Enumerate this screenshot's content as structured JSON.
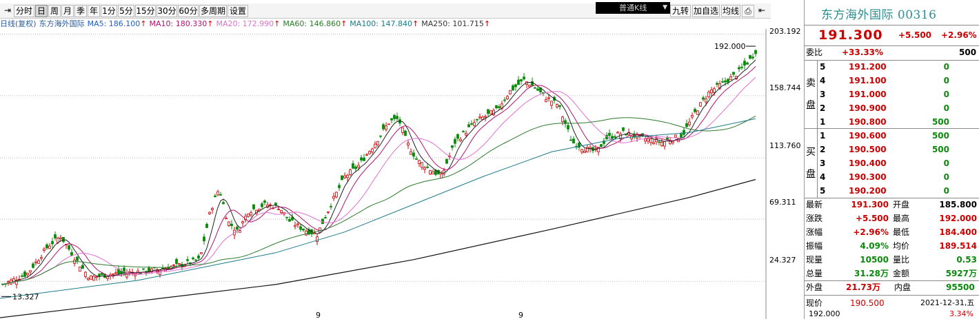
{
  "toolbar": {
    "nav_icon": "arrow-in-icon",
    "periods": [
      "分时",
      "日",
      "周",
      "月",
      "季",
      "年",
      "1分",
      "5分",
      "15分",
      "30分",
      "60分",
      "多周期",
      "设置"
    ],
    "active_period": "日",
    "kline_type": "普通K线",
    "right_buttons": [
      "九转",
      "加自选",
      "均线"
    ],
    "right_icons": [
      "print-icon",
      "arrow-in-icon"
    ]
  },
  "ma_legend": {
    "prefix": "日线(复权)",
    "stock": "东方海外国际",
    "items": [
      {
        "label": "MA5: 186.100",
        "color": "#1f5fbf"
      },
      {
        "label": "MA10: 180.330",
        "color": "#b0136e"
      },
      {
        "label": "MA20: 172.990",
        "color": "#e070d0"
      },
      {
        "label": "MA60: 146.860",
        "color": "#2a7a2a"
      },
      {
        "label": "MA100: 147.840",
        "color": "#1a7a8a"
      },
      {
        "label": "MA250: 101.715",
        "color": "#333333"
      }
    ],
    "arrow": "↑"
  },
  "chart": {
    "axis_labels": [
      "203.192",
      "158.744",
      "113.760",
      "69.311",
      "24.327"
    ],
    "high_mark": "192.000",
    "low_mark": "13.327",
    "month_marks": [
      "9",
      "9"
    ],
    "bottom_price": "192.000"
  },
  "chart_data": {
    "type": "candlestick",
    "title": "",
    "ylim": [
      0,
      210
    ],
    "y_ticks": [
      203.192,
      158.744,
      113.76,
      69.311,
      24.327
    ],
    "annotations": [
      {
        "text": "192.000",
        "value": 192.0
      },
      {
        "text": "13.327",
        "value": 13.327
      }
    ],
    "series": [
      {
        "name": "MA5",
        "end_value": 186.1
      },
      {
        "name": "MA10",
        "end_value": 180.33
      },
      {
        "name": "MA20",
        "end_value": 172.99
      },
      {
        "name": "MA60",
        "end_value": 146.86
      },
      {
        "name": "MA100",
        "end_value": 147.84
      },
      {
        "name": "MA250",
        "end_value": 101.715
      }
    ]
  },
  "panel": {
    "name": "东方海外国际 00316",
    "price": "191.300",
    "change": "+5.500",
    "change_pct": "+2.96%",
    "weibi": {
      "label": "委比",
      "value": "+33.33%",
      "diff": "500"
    },
    "sell_label": [
      "卖",
      "盘"
    ],
    "buy_label": [
      "买",
      "盘"
    ],
    "sell": [
      {
        "lv": "5",
        "price": "191.200",
        "vol": "0"
      },
      {
        "lv": "4",
        "price": "191.100",
        "vol": "0"
      },
      {
        "lv": "3",
        "price": "191.000",
        "vol": "0"
      },
      {
        "lv": "2",
        "price": "190.900",
        "vol": "0"
      },
      {
        "lv": "1",
        "price": "190.800",
        "vol": "500"
      }
    ],
    "buy": [
      {
        "lv": "1",
        "price": "190.600",
        "vol": "500"
      },
      {
        "lv": "2",
        "price": "190.500",
        "vol": "500"
      },
      {
        "lv": "3",
        "price": "190.400",
        "vol": "0"
      },
      {
        "lv": "4",
        "price": "190.300",
        "vol": "0"
      },
      {
        "lv": "5",
        "price": "190.200",
        "vol": "0"
      }
    ],
    "stats": [
      {
        "l1": "最新",
        "v1": "191.300",
        "c1": "red",
        "l2": "开盘",
        "v2": "185.800",
        "c2": "blk"
      },
      {
        "l1": "涨跌",
        "v1": "+5.500",
        "c1": "red",
        "l2": "最高",
        "v2": "192.000",
        "c2": "red"
      },
      {
        "l1": "涨幅",
        "v1": "+2.96%",
        "c1": "red",
        "l2": "最低",
        "v2": "184.400",
        "c2": "red"
      },
      {
        "l1": "振幅",
        "v1": "4.09%",
        "c1": "green",
        "l2": "均价",
        "v2": "189.514",
        "c2": "red"
      },
      {
        "l1": "现量",
        "v1": "10500",
        "c1": "green",
        "l2": "量比",
        "v2": "0.53",
        "c2": "green"
      },
      {
        "l1": "总量",
        "v1": "31.28万",
        "c1": "green",
        "l2": "金额",
        "v2": "5927万",
        "c2": "green"
      }
    ],
    "outer": {
      "l1": "外盘",
      "v1": "21.73万",
      "l2": "内盘",
      "v2": "95500"
    },
    "now": {
      "label": "现价",
      "value": "190.500",
      "date": "2021-12-31,五"
    },
    "bottom_pct": "3.34%"
  },
  "colors": {
    "up": "#d00000",
    "down": "#0a8a0a",
    "accent": "#2a8f8f"
  }
}
